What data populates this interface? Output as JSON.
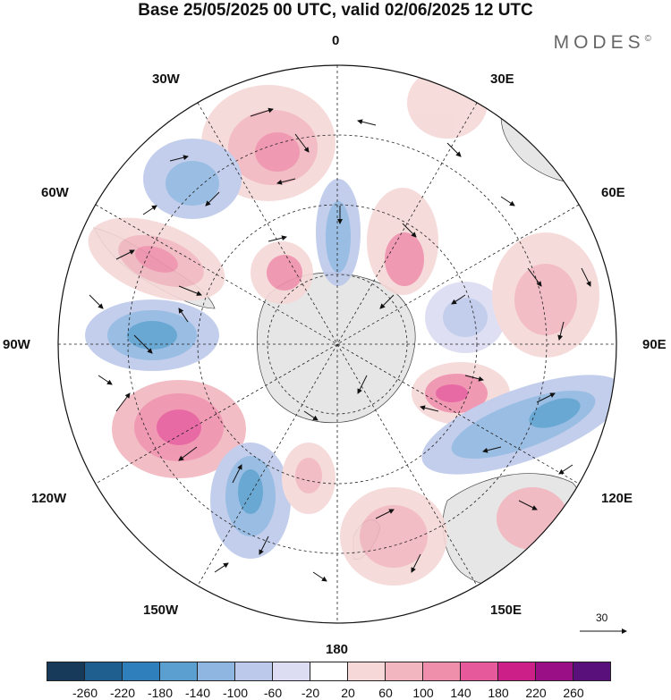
{
  "title": "Base 25/05/2025 00 UTC, valid 02/06/2025 12 UTC",
  "brand": "MODES",
  "brand_mark": "©",
  "map_labels": {
    "top": "0",
    "bottom": "180",
    "left": "90W",
    "right": "90E",
    "w30": "30W",
    "e30": "30E",
    "w60": "60W",
    "e60": "60E",
    "w120": "120W",
    "e120": "120E",
    "w150": "150W",
    "e150": "150E"
  },
  "reference_vector": "30",
  "colorbar": {
    "colors": [
      "#173a5a",
      "#1f5f8f",
      "#2e7fbb",
      "#5a9fd0",
      "#8fb6e0",
      "#bcc9ea",
      "#dcdcf2",
      "#ffffff",
      "#f6d8d8",
      "#f1b6bf",
      "#ef8fab",
      "#e65a9c",
      "#cc1f87",
      "#9a0f86",
      "#5a107a"
    ],
    "ticks": [
      "-260",
      "-220",
      "-180",
      "-140",
      "-100",
      "-60",
      "-20",
      "20",
      "60",
      "100",
      "140",
      "180",
      "220",
      "260"
    ]
  }
}
